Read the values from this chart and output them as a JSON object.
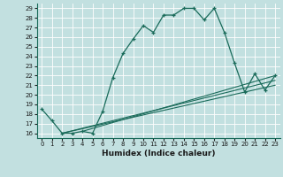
{
  "xlabel": "Humidex (Indice chaleur)",
  "bg_color": "#c2e0e0",
  "grid_color": "#ffffff",
  "line_color": "#1a6b5a",
  "xlim": [
    -0.5,
    23.5
  ],
  "ylim": [
    15.5,
    29.5
  ],
  "xticks": [
    0,
    1,
    2,
    3,
    4,
    5,
    6,
    7,
    8,
    9,
    10,
    11,
    12,
    13,
    14,
    15,
    16,
    17,
    18,
    19,
    20,
    21,
    22,
    23
  ],
  "yticks": [
    16,
    17,
    18,
    19,
    20,
    21,
    22,
    23,
    24,
    25,
    26,
    27,
    28,
    29
  ],
  "main_x": [
    0,
    1,
    2,
    3,
    4,
    5,
    6,
    7,
    8,
    9,
    10,
    11,
    12,
    13,
    14,
    15,
    16,
    17,
    18,
    19,
    20,
    21,
    22,
    23
  ],
  "main_y": [
    18.5,
    17.3,
    16.0,
    16.0,
    16.2,
    16.0,
    18.3,
    21.8,
    24.3,
    25.8,
    27.2,
    26.5,
    28.3,
    28.3,
    29.0,
    29.0,
    27.8,
    29.0,
    26.5,
    23.3,
    20.3,
    22.2,
    20.5,
    22.0
  ],
  "line1_x": [
    2,
    23
  ],
  "line1_y": [
    16.0,
    21.0
  ],
  "line2_x": [
    2,
    23
  ],
  "line2_y": [
    16.0,
    21.5
  ],
  "line3_x": [
    4,
    23
  ],
  "line3_y": [
    16.2,
    22.0
  ]
}
